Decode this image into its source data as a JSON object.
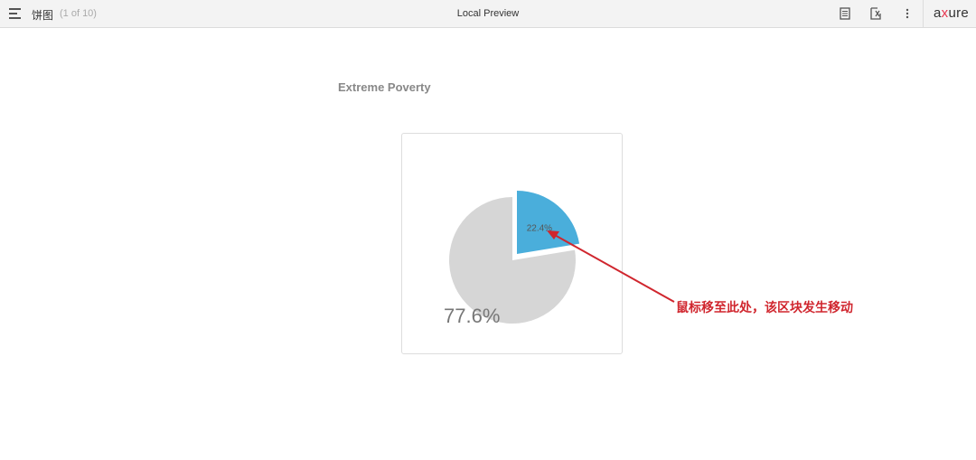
{
  "topbar": {
    "page_name": "饼图",
    "page_count": "(1 of 10)",
    "title": "Local Preview",
    "tools": [
      "notes-icon",
      "inspect-icon",
      "more-vertical-icon"
    ],
    "logo": "axure"
  },
  "chart_data": {
    "type": "pie",
    "title": "Extreme Poverty",
    "slices": [
      {
        "label": "22.4%",
        "value": 22.4,
        "color": "#4aaedb",
        "highlighted": true
      },
      {
        "label": "77.6%",
        "value": 77.6,
        "color": "#d6d6d6",
        "highlighted": false
      }
    ]
  },
  "annotation": {
    "text": "鼠标移至此处，该区块发生移动",
    "color": "#d0262e"
  }
}
